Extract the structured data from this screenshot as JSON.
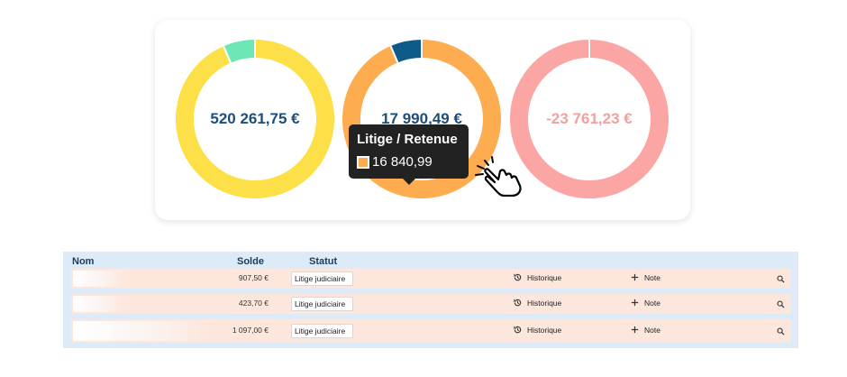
{
  "colors": {
    "yellow": "#fde047",
    "mint": "#6ee7b7",
    "orange": "#fdac4f",
    "blue": "#0e5a89",
    "pink": "#fca5a5",
    "value_blue": "#1e4d7b",
    "value_pink": "#f2a0a0"
  },
  "donuts": [
    {
      "value": "520 261,75 €",
      "segments": [
        {
          "fraction": 0.935,
          "color": "#fde047"
        },
        {
          "fraction": 0.065,
          "color": "#6ee7b7"
        }
      ]
    },
    {
      "value": "17 990,49 €",
      "segments": [
        {
          "fraction": 0.936,
          "color": "#fdac4f"
        },
        {
          "fraction": 0.064,
          "color": "#0e5a89"
        }
      ]
    },
    {
      "value": "-23 761,23 €",
      "segments": [
        {
          "fraction": 1.0,
          "color": "#fca5a5"
        }
      ]
    }
  ],
  "tooltip": {
    "title": "Litige / Retenue",
    "value": "16 840,99",
    "swatch_color": "#fdac4f"
  },
  "table": {
    "headers": {
      "name": "Nom",
      "solde": "Solde",
      "statut": "Statut"
    },
    "rows": [
      {
        "solde": "907,50 €",
        "statut": "Litige judiciaire",
        "historique": "Historique",
        "note": "Note"
      },
      {
        "solde": "423,70 €",
        "statut": "Litige judiciaire",
        "historique": "Historique",
        "note": "Note"
      },
      {
        "solde": "1 097,00 €",
        "statut": "Litige judiciaire",
        "historique": "Historique",
        "note": "Note"
      }
    ]
  },
  "icons": {
    "history": "history-icon",
    "plus": "plus-icon",
    "search": "search-icon",
    "pointer": "hand-pointer-icon"
  }
}
